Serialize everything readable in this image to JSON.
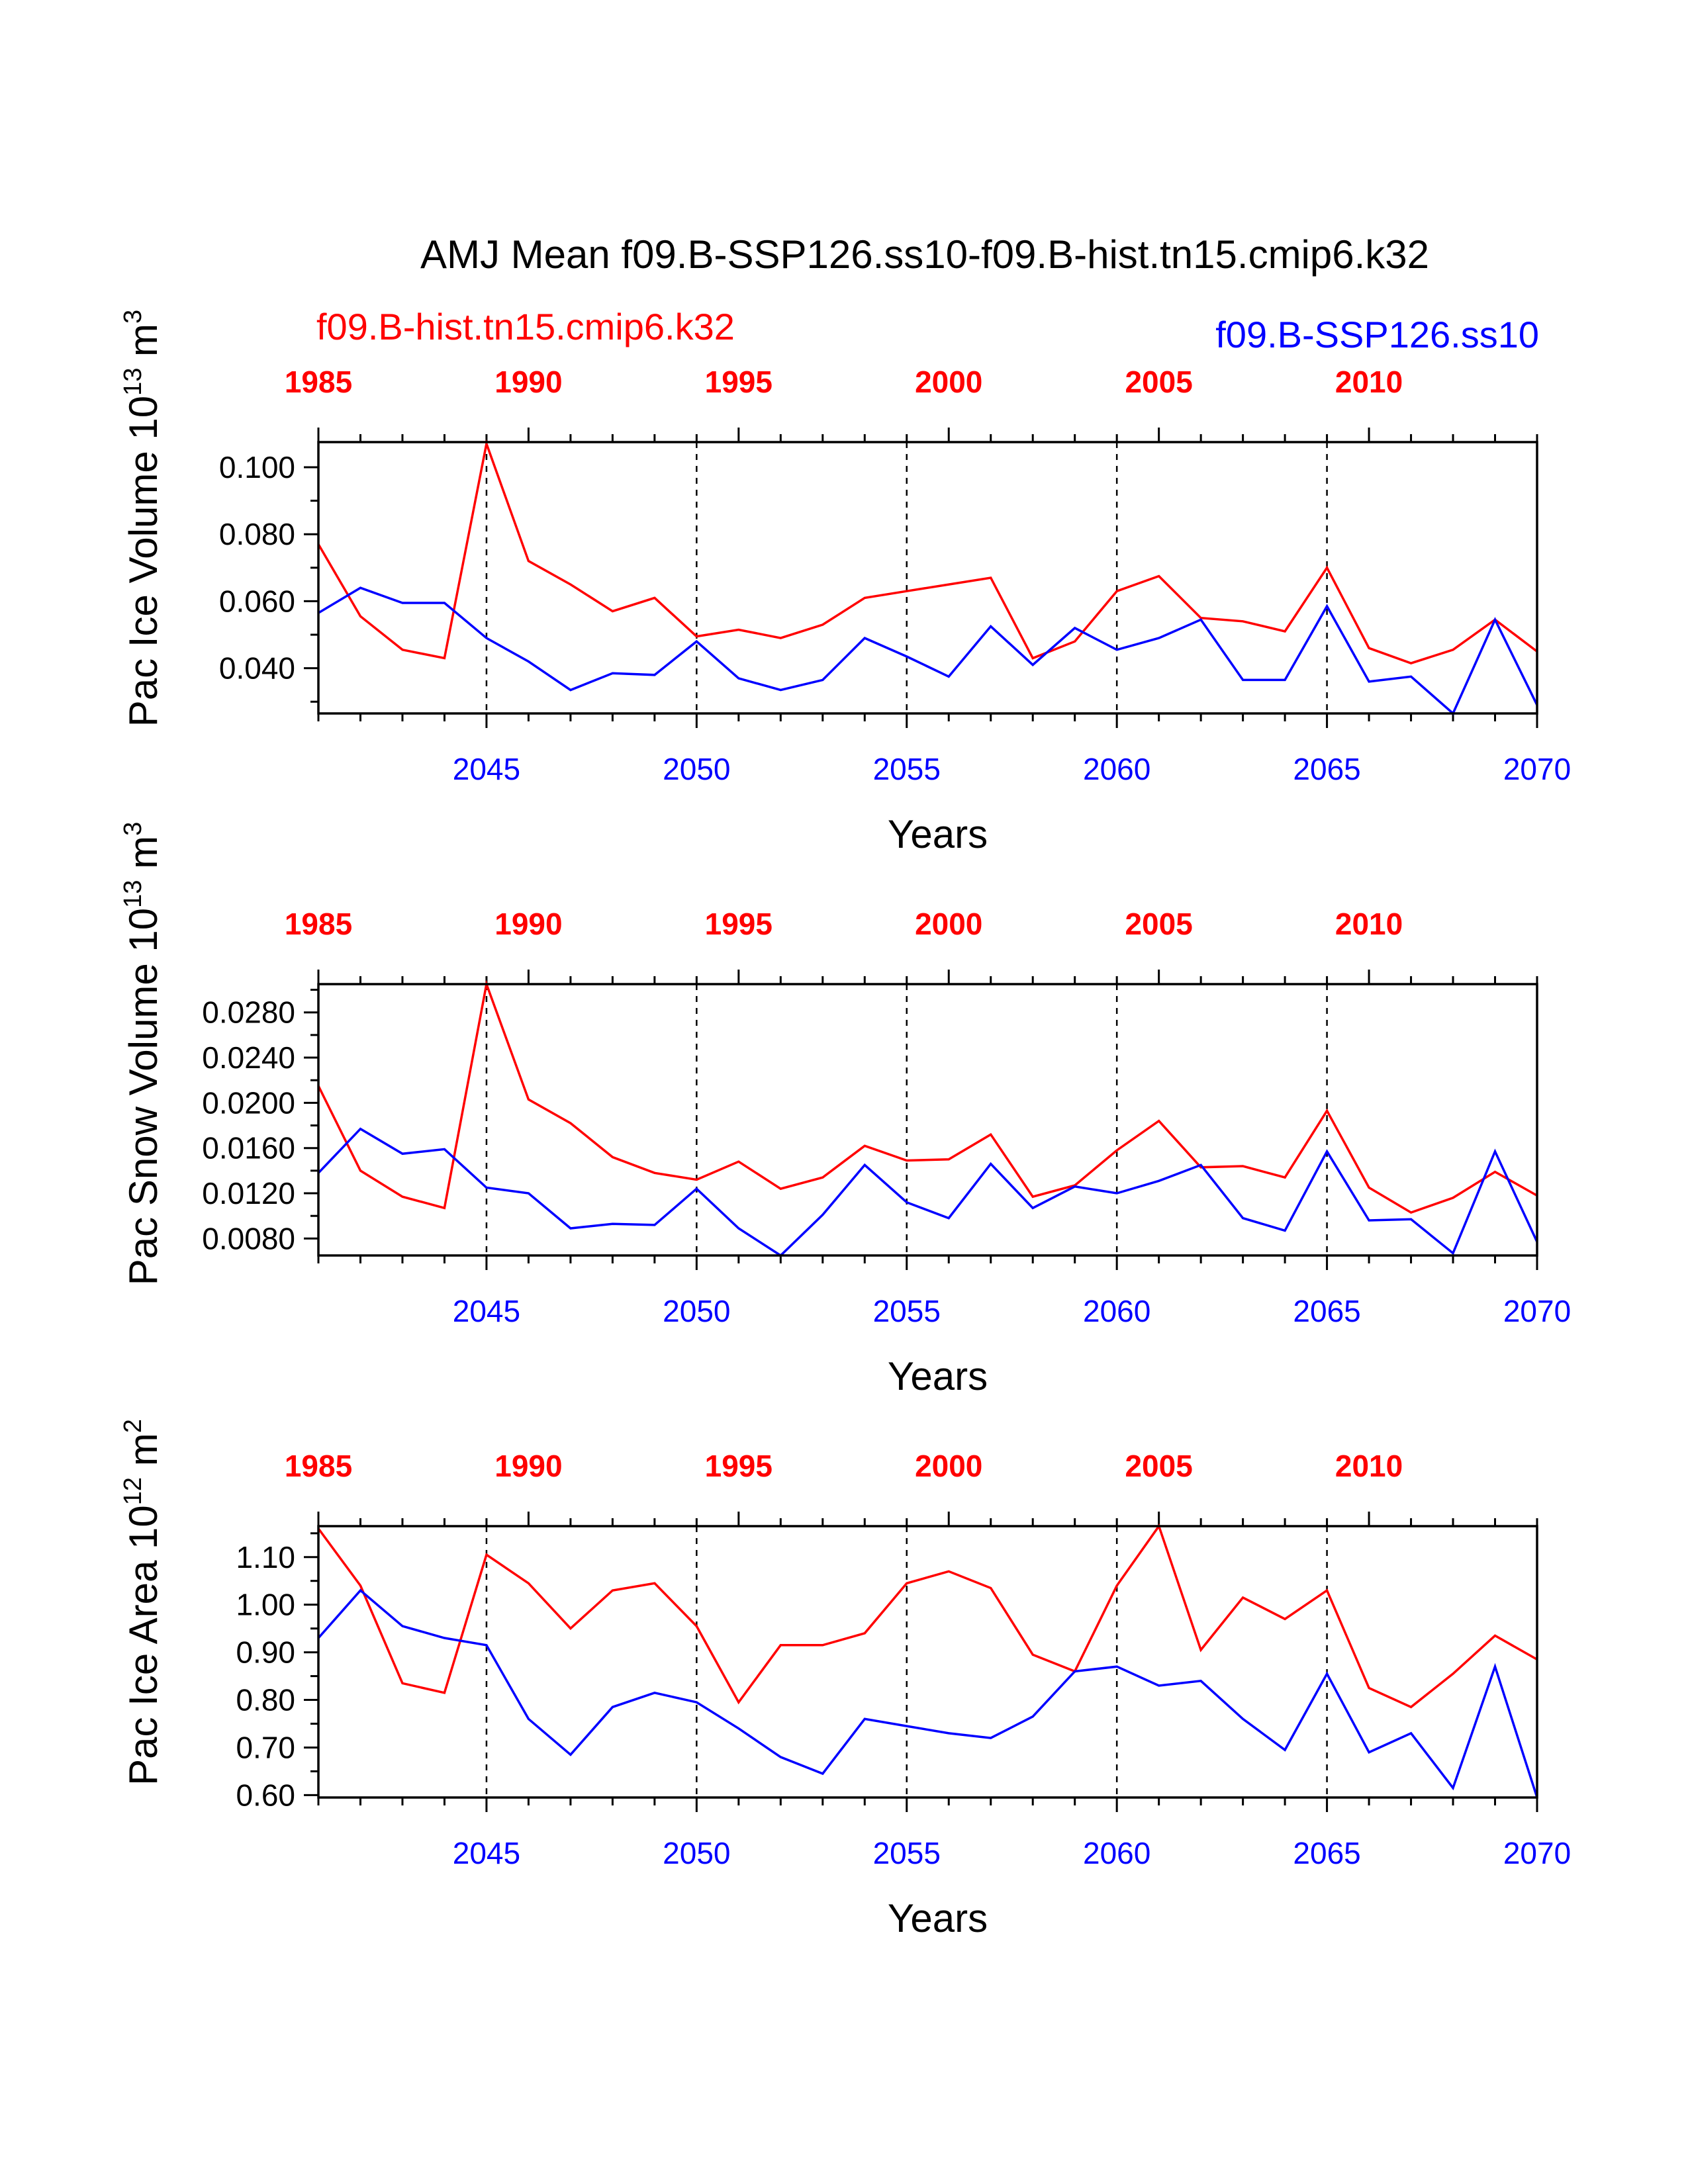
{
  "figure": {
    "title": "AMJ Mean f09.B-SSP126.ss10-f09.B-hist.tn15.cmip6.k32",
    "legend_left": "f09.B-hist.tn15.cmip6.k32",
    "legend_right": "f09.B-SSP126.ss10",
    "colors": {
      "hist": "#ff0000",
      "ssp": "#0000ff",
      "axis": "#000000"
    }
  },
  "chart_data": [
    {
      "type": "line",
      "ylabel": "Pac Ice Volume 10",
      "ylabel_exp": "13",
      "ylabel_unit": " m",
      "ylabel_unit_exp": "3",
      "xlabel": "Years",
      "ylim": [
        0.0265,
        0.1075
      ],
      "yticks": [
        0.04,
        0.06,
        0.08,
        0.1
      ],
      "ytick_labels": [
        "0.040",
        "0.060",
        "0.080",
        "0.100"
      ],
      "x_bottom_range": [
        2041,
        2070
      ],
      "x_bottom_ticks": [
        2045,
        2050,
        2055,
        2060,
        2065,
        2070
      ],
      "x_bottom_labels": [
        "2045",
        "2050",
        "2055",
        "2060",
        "2065",
        "2070"
      ],
      "x_top_ticks": [
        1985,
        1990,
        1995,
        2000,
        2005,
        2010
      ],
      "x_top_labels": [
        "1985",
        "1990",
        "1995",
        "2000",
        "2005",
        "2010"
      ],
      "series": [
        {
          "name": "f09.B-hist.tn15.cmip6.k32",
          "axis": "top",
          "start_year": 1985,
          "values": [
            0.077,
            0.0555,
            0.0455,
            0.043,
            0.107,
            0.072,
            0.065,
            0.057,
            0.061,
            0.0495,
            0.0515,
            0.049,
            0.053,
            0.061,
            0.063,
            0.065,
            0.067,
            0.043,
            0.048,
            0.063,
            0.0675,
            0.055,
            0.054,
            0.051,
            0.07,
            0.046,
            0.0415,
            0.0455,
            0.0545,
            0.045
          ]
        },
        {
          "name": "f09.B-SSP126.ss10",
          "axis": "bottom",
          "start_year": 2041,
          "values": [
            0.0565,
            0.064,
            0.0595,
            0.0595,
            0.049,
            0.042,
            0.0335,
            0.0385,
            0.038,
            0.048,
            0.037,
            0.0335,
            0.0365,
            0.049,
            0.0435,
            0.0375,
            0.0525,
            0.041,
            0.052,
            0.0455,
            0.049,
            0.0545,
            0.0365,
            0.0365,
            0.0585,
            0.036,
            0.0375,
            0.0265,
            0.0545,
            0.029
          ]
        }
      ]
    },
    {
      "type": "line",
      "ylabel": "Pac Snow Volume 10",
      "ylabel_exp": "13",
      "ylabel_unit": " m",
      "ylabel_unit_exp": "3",
      "xlabel": "Years",
      "ylim": [
        0.0065,
        0.0305
      ],
      "yticks": [
        0.008,
        0.012,
        0.016,
        0.02,
        0.024,
        0.028
      ],
      "ytick_labels": [
        "0.0080",
        "0.0120",
        "0.0160",
        "0.0200",
        "0.0240",
        "0.0280"
      ],
      "x_bottom_range": [
        2041,
        2070
      ],
      "x_bottom_ticks": [
        2045,
        2050,
        2055,
        2060,
        2065,
        2070
      ],
      "x_bottom_labels": [
        "2045",
        "2050",
        "2055",
        "2060",
        "2065",
        "2070"
      ],
      "x_top_ticks": [
        1985,
        1990,
        1995,
        2000,
        2005,
        2010
      ],
      "x_top_labels": [
        "1985",
        "1990",
        "1995",
        "2000",
        "2005",
        "2010"
      ],
      "series": [
        {
          "name": "f09.B-hist.tn15.cmip6.k32",
          "axis": "top",
          "start_year": 1985,
          "values": [
            0.0215,
            0.014,
            0.0117,
            0.0107,
            0.0305,
            0.0203,
            0.0182,
            0.0152,
            0.0138,
            0.0132,
            0.0148,
            0.0124,
            0.0134,
            0.0162,
            0.0149,
            0.015,
            0.0172,
            0.0117,
            0.0127,
            0.0158,
            0.0184,
            0.0143,
            0.0144,
            0.0134,
            0.0193,
            0.0125,
            0.0103,
            0.0116,
            0.0139,
            0.0118
          ]
        },
        {
          "name": "f09.B-SSP126.ss10",
          "axis": "bottom",
          "start_year": 2041,
          "values": [
            0.0138,
            0.0177,
            0.0155,
            0.0159,
            0.0125,
            0.012,
            0.0089,
            0.0093,
            0.0092,
            0.0124,
            0.0089,
            0.0065,
            0.0101,
            0.0145,
            0.0112,
            0.0098,
            0.0146,
            0.0107,
            0.0126,
            0.012,
            0.0131,
            0.0145,
            0.0098,
            0.0087,
            0.0157,
            0.0096,
            0.0097,
            0.0067,
            0.0157,
            0.0077
          ]
        }
      ]
    },
    {
      "type": "line",
      "ylabel": "Pac Ice Area 10",
      "ylabel_exp": "12",
      "ylabel_unit": " m",
      "ylabel_unit_exp": "2",
      "xlabel": "Years",
      "ylim": [
        0.595,
        1.165
      ],
      "yticks": [
        0.6,
        0.7,
        0.8,
        0.9,
        1.0,
        1.1
      ],
      "ytick_labels": [
        "0.60",
        "0.70",
        "0.80",
        "0.90",
        "1.00",
        "1.10"
      ],
      "x_bottom_range": [
        2041,
        2070
      ],
      "x_bottom_ticks": [
        2045,
        2050,
        2055,
        2060,
        2065,
        2070
      ],
      "x_bottom_labels": [
        "2045",
        "2050",
        "2055",
        "2060",
        "2065",
        "2070"
      ],
      "x_top_ticks": [
        1985,
        1990,
        1995,
        2000,
        2005,
        2010
      ],
      "x_top_labels": [
        "1985",
        "1990",
        "1995",
        "2000",
        "2005",
        "2010"
      ],
      "series": [
        {
          "name": "f09.B-hist.tn15.cmip6.k32",
          "axis": "top",
          "start_year": 1985,
          "values": [
            1.16,
            1.04,
            0.835,
            0.815,
            1.105,
            1.045,
            0.95,
            1.03,
            1.045,
            0.955,
            0.795,
            0.915,
            0.915,
            0.94,
            1.045,
            1.07,
            1.035,
            0.895,
            0.86,
            1.04,
            1.165,
            0.905,
            1.015,
            0.97,
            1.03,
            0.825,
            0.785,
            0.855,
            0.935,
            0.885
          ]
        },
        {
          "name": "f09.B-SSP126.ss10",
          "axis": "bottom",
          "start_year": 2041,
          "values": [
            0.93,
            1.03,
            0.955,
            0.93,
            0.915,
            0.76,
            0.685,
            0.785,
            0.815,
            0.795,
            0.74,
            0.68,
            0.645,
            0.76,
            0.745,
            0.73,
            0.72,
            0.765,
            0.86,
            0.87,
            0.83,
            0.84,
            0.76,
            0.695,
            0.855,
            0.69,
            0.73,
            0.615,
            0.87,
            0.595
          ]
        }
      ]
    }
  ]
}
